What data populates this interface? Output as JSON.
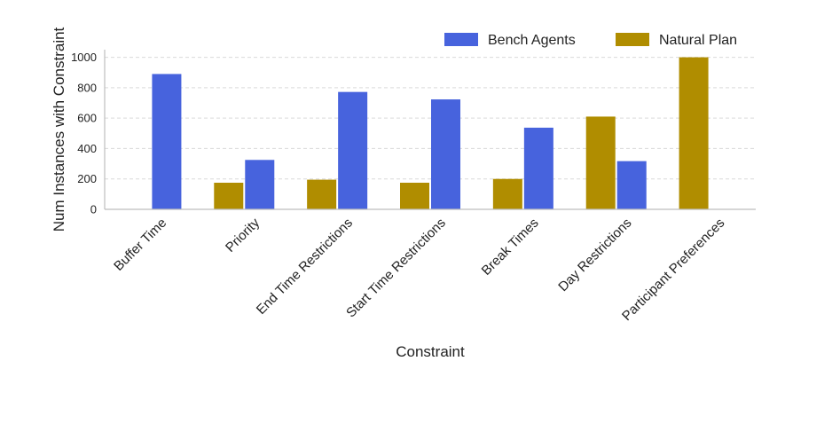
{
  "chart_data": {
    "type": "bar",
    "title": "",
    "xlabel": "Constraint",
    "ylabel": "Num Instances with Constraint",
    "categories": [
      "Buffer Time",
      "Priority",
      "End Time Restrictions",
      "Start Time Restrictions",
      "Break Times",
      "Day Restrictions",
      "Participant Preferences"
    ],
    "series": [
      {
        "name": "Natural Plan",
        "color": "#b08d00",
        "values": [
          0,
          175,
          195,
          175,
          200,
          610,
          1000
        ]
      },
      {
        "name": "Bench Agents",
        "color": "#4763dd",
        "values": [
          890,
          325,
          772,
          723,
          537,
          317,
          0
        ]
      }
    ],
    "ylim": [
      0,
      1050
    ],
    "yticks": [
      0,
      200,
      400,
      600,
      800,
      1000
    ],
    "grid": "y-dashed",
    "legend": [
      "Bench Agents",
      "Natural Plan"
    ],
    "legend_position": "top-right"
  }
}
